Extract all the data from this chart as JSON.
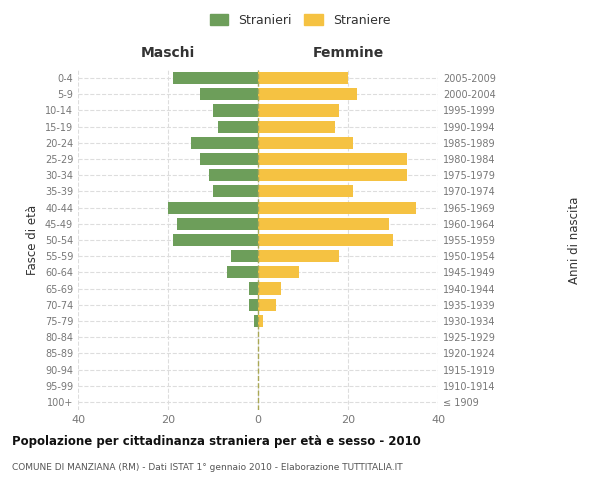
{
  "age_groups": [
    "100+",
    "95-99",
    "90-94",
    "85-89",
    "80-84",
    "75-79",
    "70-74",
    "65-69",
    "60-64",
    "55-59",
    "50-54",
    "45-49",
    "40-44",
    "35-39",
    "30-34",
    "25-29",
    "20-24",
    "15-19",
    "10-14",
    "5-9",
    "0-4"
  ],
  "birth_years": [
    "≤ 1909",
    "1910-1914",
    "1915-1919",
    "1920-1924",
    "1925-1929",
    "1930-1934",
    "1935-1939",
    "1940-1944",
    "1945-1949",
    "1950-1954",
    "1955-1959",
    "1960-1964",
    "1965-1969",
    "1970-1974",
    "1975-1979",
    "1980-1984",
    "1985-1989",
    "1990-1994",
    "1995-1999",
    "2000-2004",
    "2005-2009"
  ],
  "males": [
    0,
    0,
    0,
    0,
    0,
    1,
    2,
    2,
    7,
    6,
    19,
    18,
    20,
    10,
    11,
    13,
    15,
    9,
    10,
    13,
    19
  ],
  "females": [
    0,
    0,
    0,
    0,
    0,
    1,
    4,
    5,
    9,
    18,
    30,
    29,
    35,
    21,
    33,
    33,
    21,
    17,
    18,
    22,
    20
  ],
  "male_color": "#6d9e5a",
  "female_color": "#f5c242",
  "bar_height": 0.75,
  "xlim": 40,
  "title": "Popolazione per cittadinanza straniera per età e sesso - 2010",
  "subtitle": "COMUNE DI MANZIANA (RM) - Dati ISTAT 1° gennaio 2010 - Elaborazione TUTTITALIA.IT",
  "ylabel_left": "Fasce di età",
  "ylabel_right": "Anni di nascita",
  "header_left": "Maschi",
  "header_right": "Femmine",
  "legend_stranieri": "Stranieri",
  "legend_straniere": "Straniere",
  "bg_color": "#ffffff",
  "grid_color": "#dddddd",
  "text_color": "#333333",
  "axis_label_color": "#777777"
}
